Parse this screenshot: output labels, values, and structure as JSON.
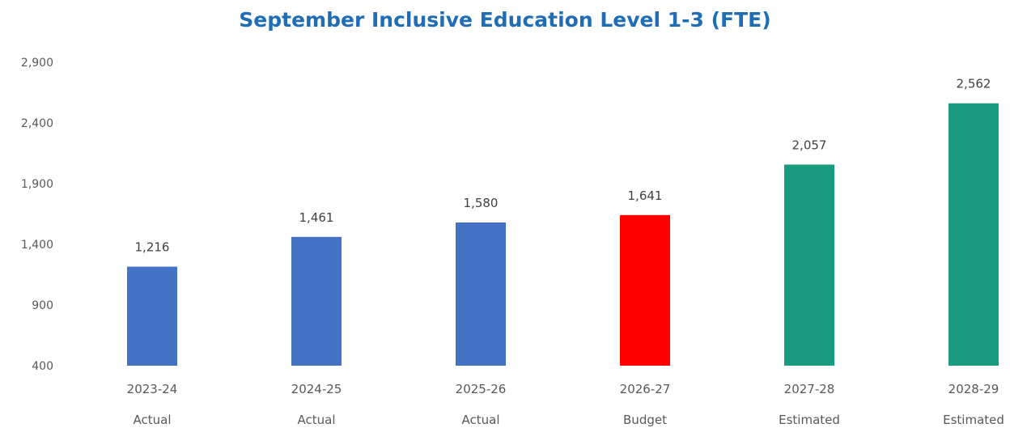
{
  "chart_data": {
    "type": "bar",
    "title": "September Inclusive Education Level 1-3 (FTE)",
    "categories": [
      "2023-24",
      "2024-25",
      "2025-26",
      "2026-27",
      "2027-28",
      "2028-29"
    ],
    "subcategories": [
      "Actual",
      "Actual",
      "Actual",
      "Budget",
      "Estimated",
      "Estimated"
    ],
    "values": [
      1216,
      1461,
      1580,
      1641,
      2057,
      2562
    ],
    "value_labels": [
      "1,216",
      "1,461",
      "1,580",
      "1,641",
      "2,057",
      "2,562"
    ],
    "bar_colors": [
      "#4472c4",
      "#4472c4",
      "#4472c4",
      "#ff0000",
      "#1a9a7e",
      "#1a9a7e"
    ],
    "title_color": "#1f6db5",
    "ylim": [
      400,
      2900
    ],
    "yticks": [
      400,
      900,
      1400,
      1900,
      2400,
      2900
    ],
    "ytick_labels": [
      "400",
      "900",
      "1,400",
      "1,900",
      "2,400",
      "2,900"
    ],
    "grid": false,
    "legend": false
  }
}
